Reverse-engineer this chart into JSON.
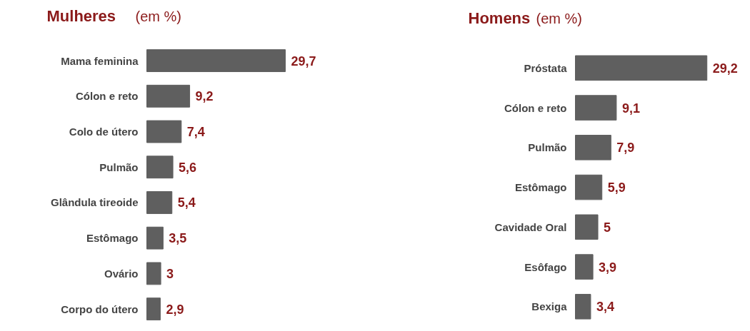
{
  "chart_data": [
    {
      "type": "bar",
      "orientation": "horizontal",
      "title": "Mulheres",
      "subtitle": "(em %)",
      "categories": [
        "Mama feminina",
        "Cólon e reto",
        "Colo de útero",
        "Pulmão",
        "Glândula tireoide",
        "Estômago",
        "Ovário",
        "Corpo do útero"
      ],
      "values": [
        29.7,
        9.2,
        7.4,
        5.6,
        5.4,
        3.5,
        3,
        2.9
      ],
      "value_labels": [
        "29,7",
        "9,2",
        "7,4",
        "5,6",
        "5,4",
        "3,5",
        "3",
        "2,9"
      ],
      "color": "#5f5f5f",
      "grid": false
    },
    {
      "type": "bar",
      "orientation": "horizontal",
      "title": "Homens",
      "subtitle": "(em %)",
      "categories": [
        "Próstata",
        "Cólon e reto",
        "Pulmão",
        "Estômago",
        "Cavidade Oral",
        "Esôfago",
        "Bexiga"
      ],
      "values": [
        29.2,
        9.1,
        7.9,
        5.9,
        5,
        3.9,
        3.4
      ],
      "value_labels": [
        "29,2",
        "9,1",
        "7,9",
        "5,9",
        "5",
        "3,9",
        "3,4"
      ],
      "color": "#5f5f5f",
      "grid": false
    }
  ]
}
